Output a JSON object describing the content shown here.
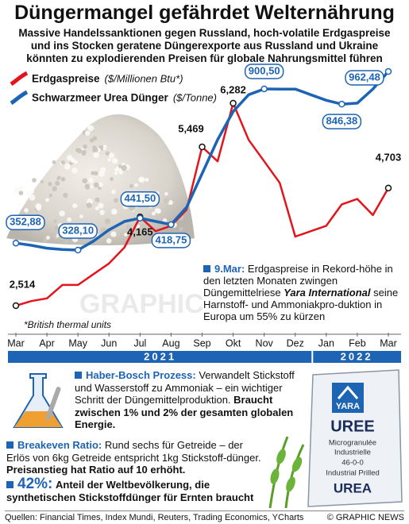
{
  "header": {
    "title": "Düngermangel gefährdet Welternährung",
    "subtitle": [
      "Massive Handelssanktionen gegen Russland, hoch-volatile Erdgaspreise",
      "und ins Stocken geratene Düngerexporte aus Russland und Ukraine",
      "könnten zu explodierenden Preisen für globale Nahrungsmittel führen"
    ]
  },
  "chart_data": {
    "type": "line",
    "categories": [
      "Mar",
      null,
      "Apr",
      null,
      "May",
      null,
      "Jun",
      null,
      "Jul",
      null,
      "Aug",
      null,
      "Sep",
      null,
      "Okt",
      null,
      "Nov",
      null,
      "Dez",
      null,
      "Jan",
      null,
      "Feb",
      null,
      "Mar"
    ],
    "years": [
      "2021",
      "2022"
    ],
    "series": [
      {
        "name": "Erdgaspreise",
        "unit": "($/Millionen Btu*)",
        "color": "#e3141b",
        "values": [
          2.514,
          2.6,
          2.65,
          2.9,
          2.9,
          3.1,
          3.3,
          3.6,
          4.165,
          3.9,
          4.0,
          4.3,
          5.469,
          5.2,
          6.282,
          5.6,
          5.2,
          4.8,
          3.8,
          3.9,
          4.0,
          4.4,
          4.5,
          4.2,
          4.703
        ],
        "value_labels": [
          "2,514",
          null,
          null,
          null,
          null,
          null,
          null,
          null,
          "4,165",
          null,
          null,
          null,
          "5,469",
          null,
          "6,282",
          null,
          null,
          null,
          null,
          null,
          null,
          null,
          null,
          null,
          "4,703"
        ]
      },
      {
        "name": "Schwarzmeer Urea Dünger",
        "unit": "($/Tonne)",
        "color": "#1e64b4",
        "values": [
          352.88,
          345,
          335,
          330,
          328.1,
          360,
          400,
          430,
          441.5,
          430,
          418.75,
          480,
          600,
          720,
          820,
          880,
          900.5,
          900,
          900,
          880,
          860,
          846.38,
          850,
          900,
          962.48
        ],
        "value_labels": [
          "352,88",
          null,
          null,
          null,
          "328,10",
          null,
          null,
          null,
          "441,50",
          null,
          "418,75",
          null,
          null,
          null,
          null,
          null,
          "900,50",
          null,
          null,
          null,
          null,
          "846,38",
          null,
          null,
          "962,48"
        ]
      }
    ],
    "footnote": "*British thermal units",
    "watermark": "GRAPHIC",
    "annotation": {
      "label": "9.Mar:",
      "text1": "Erdgaspreise in Rekord-höhe in den letzten Monaten zwingen Düngemittelriese",
      "highlight": "Yara International",
      "text2": "seine Harnstoff- und Ammoniakpro-duktion in Europa um 55% zu kürzen"
    }
  },
  "info": [
    {
      "heading": "Haber-Bosch Prozess:",
      "text": "Verwandelt Stickstoff und Wasserstoff zu Ammoniak – ein wichtiger Schritt der Düngemittelproduktion.",
      "bold": "Braucht zwischen 1% und 2% der gesamten globalen Energie."
    },
    {
      "heading": "Breakeven Ratio:",
      "text": "Rund sechs für Getreide – der Erlös von 6kg Getreide entspricht 1kg Stickstoff-dünger.",
      "bold": "Preisanstieg hat Ratio auf 10 erhöht."
    },
    {
      "heading": "42%:",
      "bold": "Anteil der Weltbevölkerung, die synthetischen Stickstoffdünger für Ernten braucht"
    }
  ],
  "bag": {
    "brand": "YARA",
    "product": "UREE",
    "lines": [
      "Microgranulée",
      "Industrielle",
      "46-0-0",
      "Industrial Prilled"
    ],
    "product2": "UREA"
  },
  "footer": {
    "sources": "Quellen: Financial Times, Index Mundi, Reuters, Trading Economics, YCharts",
    "copyright": "© GRAPHIC NEWS"
  }
}
